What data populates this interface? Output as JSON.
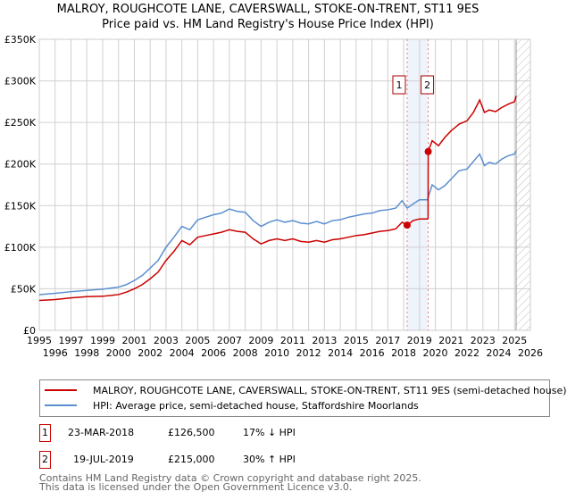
{
  "chart_data": {
    "type": "line",
    "title": "MALROY, ROUGHCOTE LANE, CAVERSWALL, STOKE-ON-TRENT, ST11 9ES",
    "subtitle": "Price paid vs. HM Land Registry's House Price Index (HPI)",
    "xlim": [
      1995,
      2026
    ],
    "ylim": [
      0,
      350000
    ],
    "yticks": [
      0,
      50000,
      100000,
      150000,
      200000,
      250000,
      300000,
      350000
    ],
    "ytick_labels": [
      "£0",
      "£50K",
      "£100K",
      "£150K",
      "£200K",
      "£250K",
      "£300K",
      "£350K"
    ],
    "xticks": [
      1995,
      1996,
      1997,
      1998,
      1999,
      2000,
      2001,
      2002,
      2003,
      2004,
      2005,
      2006,
      2007,
      2008,
      2009,
      2010,
      2011,
      2012,
      2013,
      2014,
      2015,
      2016,
      2017,
      2018,
      2019,
      2020,
      2021,
      2022,
      2023,
      2024,
      2025,
      2026
    ],
    "grid": true,
    "forecast_hatch_from": 2025.1,
    "series": [
      {
        "name": "MALROY, ROUGHCOTE LANE, CAVERSWALL, STOKE-ON-TRENT, ST11 9ES (semi-detached house)",
        "color": "#cc0000",
        "x": [
          1995,
          1996,
          1997,
          1998,
          1999,
          2000,
          2000.5,
          2001,
          2001.5,
          2002,
          2002.5,
          2003,
          2003.5,
          2004,
          2004.5,
          2005,
          2005.5,
          2006,
          2006.5,
          2007,
          2007.5,
          2008,
          2008.5,
          2009,
          2009.5,
          2010,
          2010.5,
          2011,
          2011.5,
          2012,
          2012.5,
          2013,
          2013.5,
          2014,
          2014.5,
          2015,
          2015.5,
          2016,
          2016.5,
          2017,
          2017.5,
          2017.9,
          2018.22,
          2018.6,
          2019,
          2019.5,
          2019.54,
          2019.55,
          2019.8,
          2020.2,
          2020.6,
          2021,
          2021.5,
          2022,
          2022.4,
          2022.8,
          2023.1,
          2023.4,
          2023.8,
          2024.2,
          2024.6,
          2025,
          2025.1
        ],
        "y": [
          36000,
          37000,
          39000,
          40500,
          41000,
          43000,
          46000,
          50000,
          55000,
          62000,
          70000,
          84000,
          95000,
          108000,
          103000,
          112000,
          114000,
          116000,
          118000,
          121000,
          119000,
          118000,
          110000,
          104000,
          108000,
          110000,
          108000,
          110000,
          107000,
          106000,
          108000,
          106000,
          109000,
          110000,
          112000,
          114000,
          115000,
          117000,
          119000,
          120000,
          122000,
          130000,
          126500,
          132000,
          134000,
          134000,
          135000,
          215000,
          228000,
          222000,
          232000,
          240000,
          248000,
          252000,
          262000,
          277000,
          262000,
          265000,
          263000,
          268000,
          272000,
          275000,
          282000
        ]
      },
      {
        "name": "HPI: Average price, semi-detached house, Staffordshire Moorlands",
        "color": "#5b8fd0",
        "x": [
          1995,
          1996,
          1997,
          1998,
          1999,
          2000,
          2000.5,
          2001,
          2001.5,
          2002,
          2002.5,
          2003,
          2003.5,
          2004,
          2004.5,
          2005,
          2005.5,
          2006,
          2006.5,
          2007,
          2007.5,
          2008,
          2008.5,
          2009,
          2009.5,
          2010,
          2010.5,
          2011,
          2011.5,
          2012,
          2012.5,
          2013,
          2013.5,
          2014,
          2014.5,
          2015,
          2015.5,
          2016,
          2016.5,
          2017,
          2017.5,
          2017.9,
          2018.22,
          2018.6,
          2019,
          2019.5,
          2019.8,
          2020.2,
          2020.6,
          2021,
          2021.5,
          2022,
          2022.4,
          2022.8,
          2023.1,
          2023.4,
          2023.8,
          2024.2,
          2024.6,
          2025,
          2025.1
        ],
        "y": [
          43000,
          44500,
          46500,
          48000,
          49500,
          52000,
          55000,
          60000,
          66000,
          75000,
          84000,
          100000,
          112000,
          125000,
          121000,
          133000,
          136000,
          139000,
          141000,
          146000,
          143000,
          142000,
          132000,
          125000,
          130000,
          133000,
          130000,
          132000,
          129000,
          128000,
          131000,
          128000,
          132000,
          133000,
          136000,
          138000,
          140000,
          141000,
          144000,
          145000,
          147000,
          156000,
          147000,
          152000,
          157000,
          157000,
          175000,
          169000,
          174000,
          182000,
          192000,
          194000,
          203000,
          212000,
          198000,
          202000,
          200000,
          206000,
          210000,
          212000,
          216000
        ]
      }
    ],
    "sales": [
      {
        "label": "1",
        "x": 2018.22,
        "y": 126500
      },
      {
        "label": "2",
        "x": 2019.55,
        "y": 215000
      }
    ]
  },
  "legend": {
    "red": "MALROY, ROUGHCOTE LANE, CAVERSWALL, STOKE-ON-TRENT, ST11 9ES (semi-detached house)",
    "blue": "HPI: Average price, semi-detached house, Staffordshire Moorlands"
  },
  "table": [
    {
      "n": "1",
      "date": "23-MAR-2018",
      "price": "£126,500",
      "hpi": "17% ↓ HPI"
    },
    {
      "n": "2",
      "date": "19-JUL-2019",
      "price": "£215,000",
      "hpi": "30% ↑ HPI"
    }
  ],
  "footer": {
    "line1": "Contains HM Land Registry data © Crown copyright and database right 2025.",
    "line2": "This data is licensed under the Open Government Licence v3.0."
  }
}
